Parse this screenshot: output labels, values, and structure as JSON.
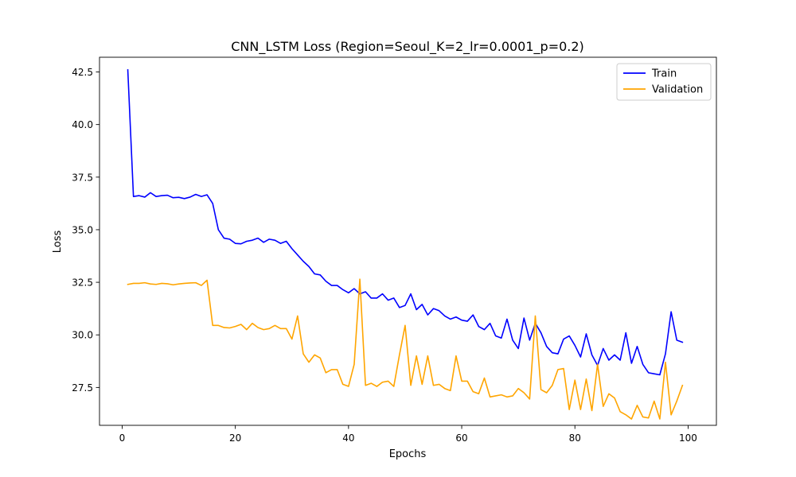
{
  "chart_data": {
    "type": "line",
    "title": "CNN_LSTM Loss (Region=Seoul_K=2_lr=0.0001_p=0.2)",
    "xlabel": "Epochs",
    "ylabel": "Loss",
    "xlim": [
      -4,
      105
    ],
    "ylim": [
      25.7,
      43.2
    ],
    "xticks": [
      0,
      20,
      40,
      60,
      80,
      100
    ],
    "xtick_labels": [
      "0",
      "20",
      "40",
      "60",
      "80",
      "100"
    ],
    "yticks": [
      27.5,
      30.0,
      32.5,
      35.0,
      37.5,
      40.0,
      42.5
    ],
    "ytick_labels": [
      "27.5",
      "30.0",
      "32.5",
      "35.0",
      "37.5",
      "40.0",
      "42.5"
    ],
    "grid": false,
    "legend_position": "top-right",
    "x": [
      1,
      2,
      3,
      4,
      5,
      6,
      7,
      8,
      9,
      10,
      11,
      12,
      13,
      14,
      15,
      16,
      17,
      18,
      19,
      20,
      21,
      22,
      23,
      24,
      25,
      26,
      27,
      28,
      29,
      30,
      31,
      32,
      33,
      34,
      35,
      36,
      37,
      38,
      39,
      40,
      41,
      42,
      43,
      44,
      45,
      46,
      47,
      48,
      49,
      50,
      51,
      52,
      53,
      54,
      55,
      56,
      57,
      58,
      59,
      60,
      61,
      62,
      63,
      64,
      65,
      66,
      67,
      68,
      69,
      70,
      71,
      72,
      73,
      74,
      75,
      76,
      77,
      78,
      79,
      80,
      81,
      82,
      83,
      84,
      85,
      86,
      87,
      88,
      89,
      90,
      91,
      92,
      93,
      94,
      95,
      96,
      97,
      98,
      99
    ],
    "series": [
      {
        "name": "Train",
        "color": "#0000ff",
        "values": [
          42.6,
          36.58,
          36.62,
          36.55,
          36.76,
          36.58,
          36.62,
          36.64,
          36.52,
          36.54,
          36.48,
          36.55,
          36.68,
          36.58,
          36.66,
          36.25,
          35.0,
          34.6,
          34.55,
          34.35,
          34.33,
          34.45,
          34.5,
          34.6,
          34.4,
          34.55,
          34.5,
          34.35,
          34.45,
          34.1,
          33.8,
          33.5,
          33.25,
          32.9,
          32.85,
          32.55,
          32.35,
          32.35,
          32.15,
          32.0,
          32.2,
          31.95,
          32.05,
          31.75,
          31.75,
          31.95,
          31.65,
          31.75,
          31.3,
          31.4,
          31.95,
          31.2,
          31.45,
          30.95,
          31.25,
          31.15,
          30.9,
          30.75,
          30.85,
          30.7,
          30.65,
          30.95,
          30.4,
          30.25,
          30.55,
          29.95,
          29.85,
          30.75,
          29.75,
          29.35,
          30.8,
          29.75,
          30.55,
          30.1,
          29.45,
          29.15,
          29.1,
          29.8,
          29.95,
          29.5,
          28.95,
          30.05,
          29.05,
          28.55,
          29.35,
          28.8,
          29.05,
          28.8,
          30.1,
          28.65,
          29.45,
          28.6,
          28.2,
          28.15,
          28.1,
          29.1,
          31.1,
          29.75,
          29.65
        ]
      },
      {
        "name": "Validation",
        "color": "#ffa500",
        "values": [
          32.4,
          32.45,
          32.45,
          32.48,
          32.42,
          32.4,
          32.45,
          32.43,
          32.38,
          32.42,
          32.45,
          32.47,
          32.48,
          32.35,
          32.6,
          30.45,
          30.45,
          30.35,
          30.33,
          30.4,
          30.5,
          30.25,
          30.55,
          30.35,
          30.25,
          30.3,
          30.45,
          30.3,
          30.3,
          29.8,
          30.9,
          29.1,
          28.7,
          29.05,
          28.9,
          28.2,
          28.35,
          28.35,
          27.65,
          27.55,
          28.6,
          32.65,
          27.6,
          27.7,
          27.55,
          27.75,
          27.8,
          27.55,
          29.05,
          30.45,
          27.6,
          29.0,
          27.65,
          29.0,
          27.6,
          27.65,
          27.45,
          27.35,
          29.0,
          27.8,
          27.8,
          27.3,
          27.2,
          27.95,
          27.05,
          27.1,
          27.15,
          27.05,
          27.1,
          27.45,
          27.25,
          26.95,
          30.9,
          27.4,
          27.25,
          27.6,
          28.35,
          28.4,
          26.45,
          27.85,
          26.45,
          27.9,
          26.4,
          28.6,
          26.6,
          27.2,
          27.0,
          26.35,
          26.2,
          26.0,
          26.65,
          26.1,
          26.05,
          26.85,
          26.0,
          28.7,
          26.2,
          26.85,
          27.6
        ]
      }
    ]
  }
}
